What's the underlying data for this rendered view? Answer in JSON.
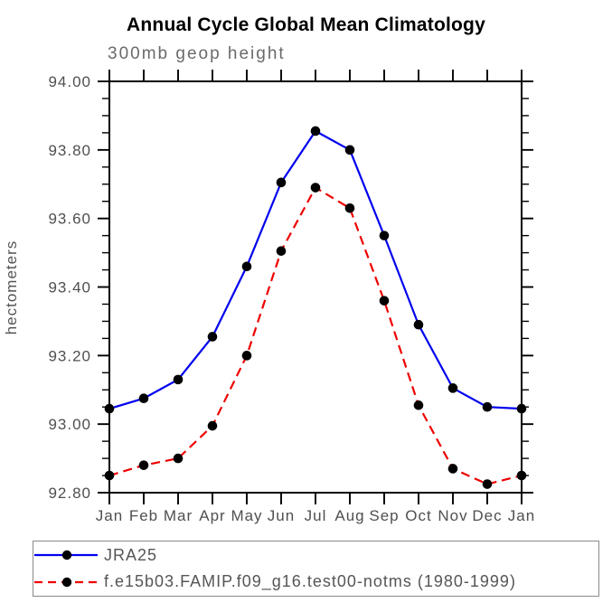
{
  "title": "Annual Cycle Global Mean Climatology",
  "subtitle": "300mb geop height",
  "chart_data": {
    "type": "line",
    "x": [
      "Jan",
      "Feb",
      "Mar",
      "Apr",
      "May",
      "Jun",
      "Jul",
      "Aug",
      "Sep",
      "Oct",
      "Nov",
      "Dec",
      "Jan"
    ],
    "xlabel": "",
    "ylabel": "hectometers",
    "ylim": [
      92.8,
      94.0
    ],
    "ytick_step": 0.2,
    "yminor_step": 0.05,
    "ytick_labels": [
      "92.80",
      "93.00",
      "93.20",
      "93.40",
      "93.60",
      "93.80",
      "94.00"
    ],
    "grid": false,
    "legend_position": "bottom",
    "marker": "filled-circle",
    "marker_color": "#000000",
    "series": [
      {
        "name": "JRA25",
        "color": "#0000ee",
        "style": "solid",
        "values": [
          93.045,
          93.075,
          93.13,
          93.255,
          93.46,
          93.705,
          93.855,
          93.8,
          93.55,
          93.29,
          93.105,
          93.05,
          93.045
        ]
      },
      {
        "name": "f.e15b03.FAMIP.f09_g16.test00-notms (1980-1999)",
        "color": "#ee0000",
        "style": "dashed",
        "values": [
          92.85,
          92.88,
          92.9,
          92.995,
          93.2,
          93.505,
          93.69,
          93.63,
          93.36,
          93.055,
          92.87,
          92.825,
          92.85
        ]
      }
    ]
  },
  "colors": {
    "axis": "#000000",
    "tick_label": "#4f4f4f",
    "subtitle": "#6a6a6a",
    "legend_border": "#8a8a8a",
    "legend_text": "#565656"
  }
}
